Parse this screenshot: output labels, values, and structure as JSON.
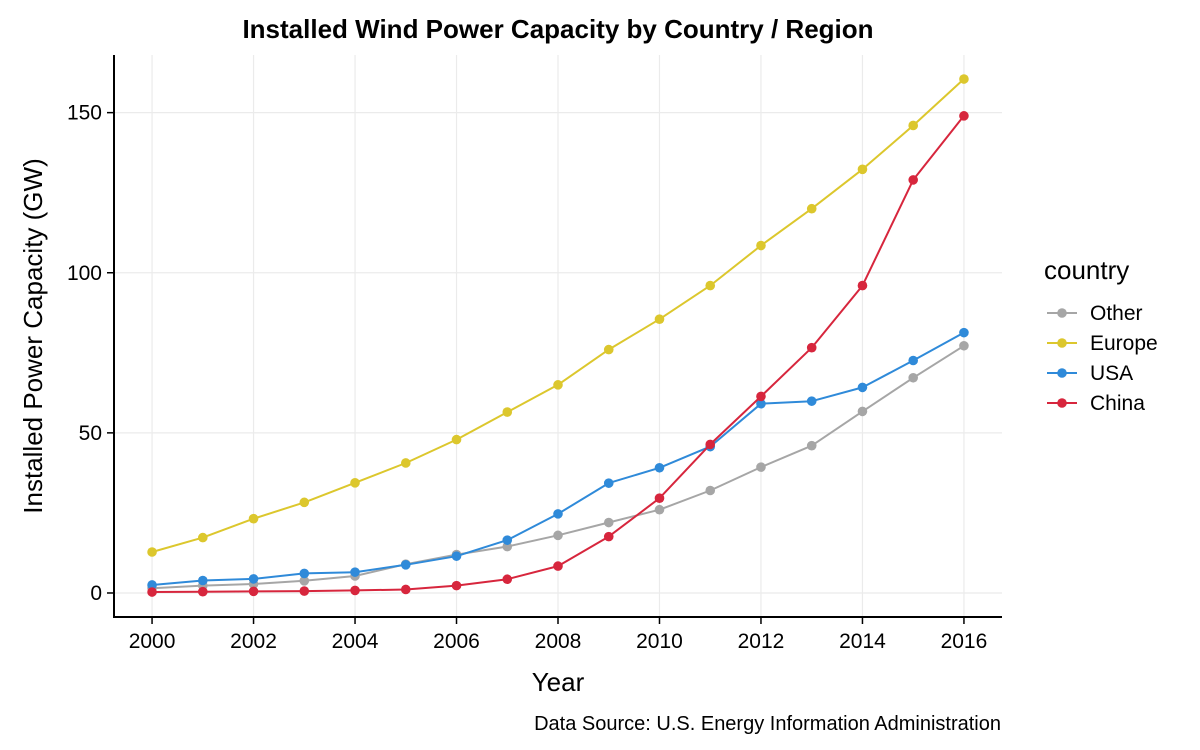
{
  "chart_data": {
    "type": "line",
    "title": "Installed Wind Power Capacity by Country / Region",
    "xlabel": "Year",
    "ylabel": "Installed Power Capacity (GW)",
    "caption": "Data Source: U.S. Energy Information Administration",
    "legend_title": "country",
    "legend_position": "right",
    "grid": true,
    "xlim": [
      1999.25,
      2016.75
    ],
    "ylim": [
      -7.5,
      168
    ],
    "x_ticks": [
      2000,
      2002,
      2004,
      2006,
      2008,
      2010,
      2012,
      2014,
      2016
    ],
    "x_tick_labels": [
      "2000",
      "2002",
      "2004",
      "2006",
      "2008",
      "2010",
      "2012",
      "2014",
      "2016"
    ],
    "y_ticks": [
      0,
      50,
      100,
      150
    ],
    "y_tick_labels": [
      "0",
      "50",
      "100",
      "150"
    ],
    "x": [
      2000,
      2001,
      2002,
      2003,
      2004,
      2005,
      2006,
      2007,
      2008,
      2009,
      2010,
      2011,
      2012,
      2013,
      2014,
      2015,
      2016
    ],
    "series": [
      {
        "name": "Other",
        "color": "#a6a6a6",
        "values": [
          1.5,
          2.3,
          2.8,
          3.8,
          5.3,
          9.0,
          12.0,
          14.5,
          18.0,
          22.0,
          26.0,
          32.0,
          39.3,
          46.0,
          56.7,
          67.2,
          77.2
        ]
      },
      {
        "name": "Europe",
        "color": "#dcc72d",
        "values": [
          12.8,
          17.3,
          23.2,
          28.3,
          34.4,
          40.6,
          47.9,
          56.5,
          65.0,
          76.0,
          85.5,
          96.0,
          108.5,
          120.0,
          132.3,
          146.0,
          160.5
        ]
      },
      {
        "name": "USA",
        "color": "#2f8ad9",
        "values": [
          2.5,
          3.9,
          4.4,
          6.1,
          6.5,
          8.8,
          11.5,
          16.5,
          24.7,
          34.3,
          39.1,
          45.7,
          59.1,
          59.9,
          64.2,
          72.6,
          81.3
        ]
      },
      {
        "name": "China",
        "color": "#d7263d",
        "values": [
          0.3,
          0.4,
          0.5,
          0.6,
          0.8,
          1.1,
          2.3,
          4.3,
          8.4,
          17.6,
          29.6,
          46.4,
          61.4,
          76.6,
          96.0,
          129.0,
          149.0
        ]
      }
    ]
  }
}
